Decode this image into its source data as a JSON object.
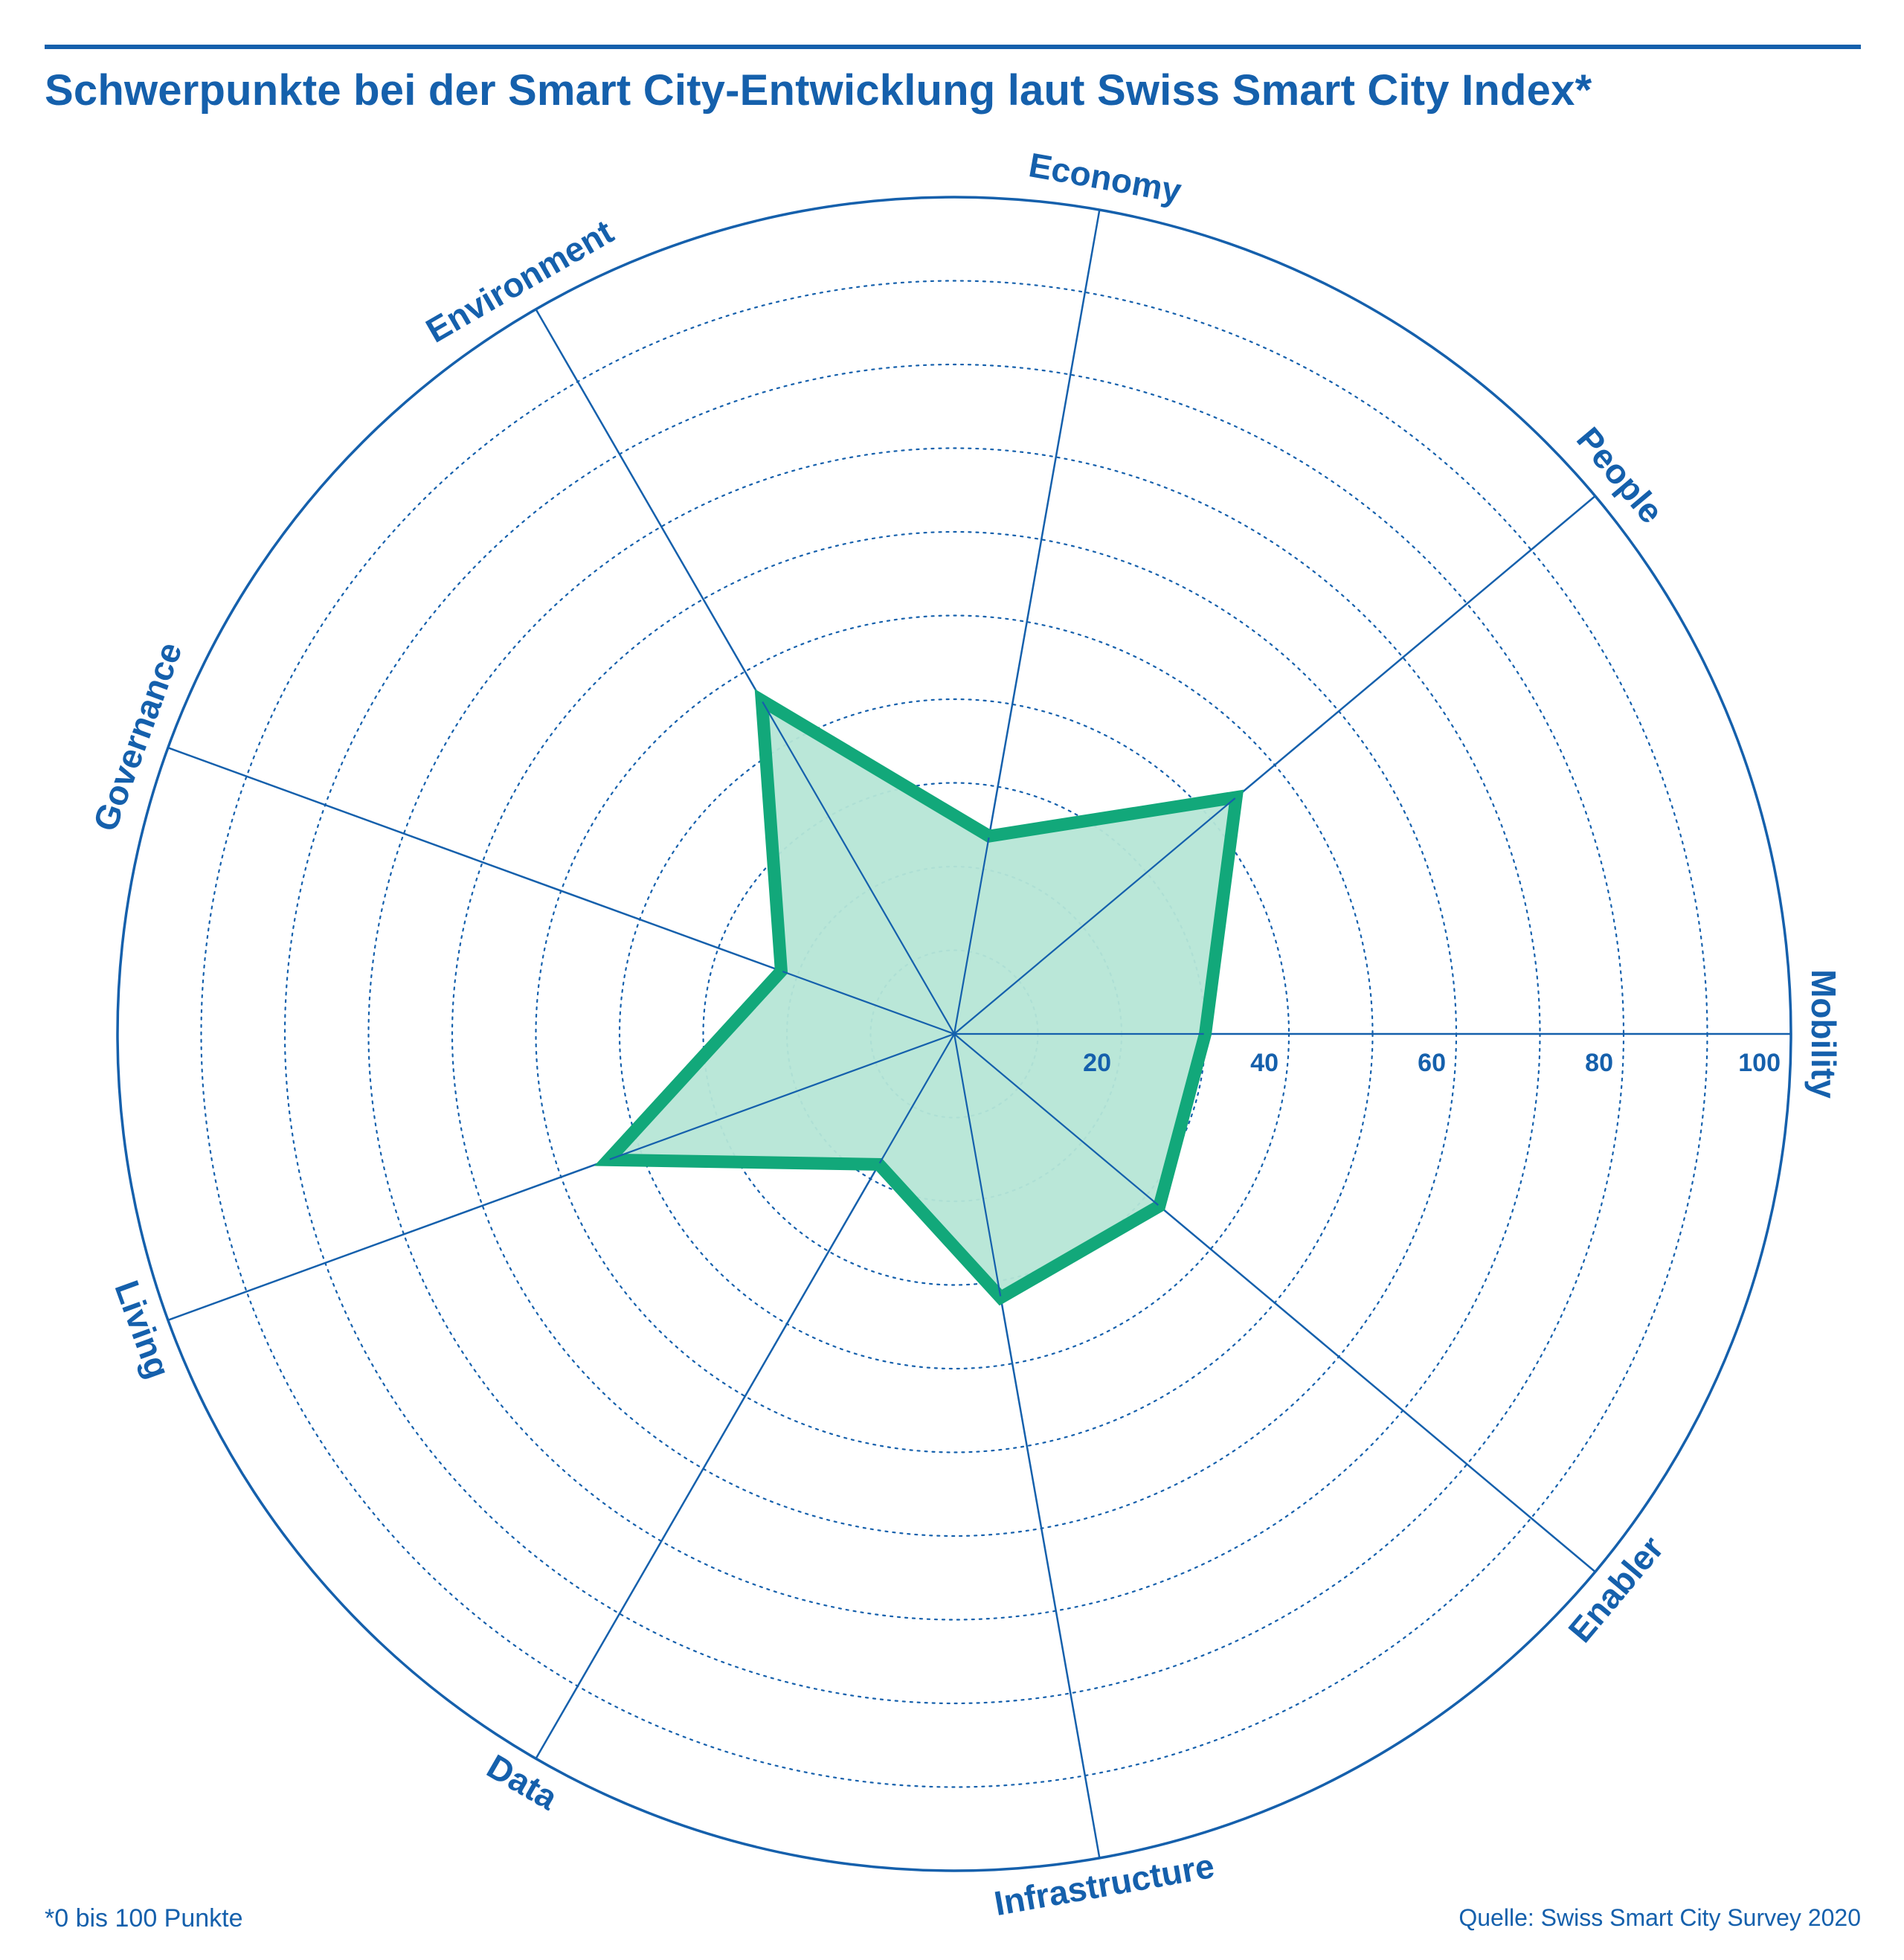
{
  "title": "Schwerpunkte bei der Smart City-Entwicklung laut Swiss Smart City Index*",
  "footnote": "*0 bis 100 Punkte",
  "source": "Quelle: Swiss Smart City Survey 2020",
  "colors": {
    "text": "#1560ac",
    "grid": "#1560ac",
    "series_line": "#12a87a",
    "series_fill": "#b6e6d6"
  },
  "chart_data": {
    "type": "radar",
    "categories": [
      "Mobility",
      "People",
      "Economy",
      "Environment",
      "Governance",
      "Living",
      "Data",
      "Infrastructure",
      "Enabler"
    ],
    "series": [
      {
        "values": [
          30,
          44,
          24,
          46,
          22,
          44,
          18,
          32,
          32
        ]
      }
    ],
    "r_range": [
      0,
      100
    ],
    "r_ticks": [
      20,
      40,
      60,
      80,
      100
    ],
    "grid_rings_step": 10,
    "grid": true,
    "legend": "none"
  }
}
